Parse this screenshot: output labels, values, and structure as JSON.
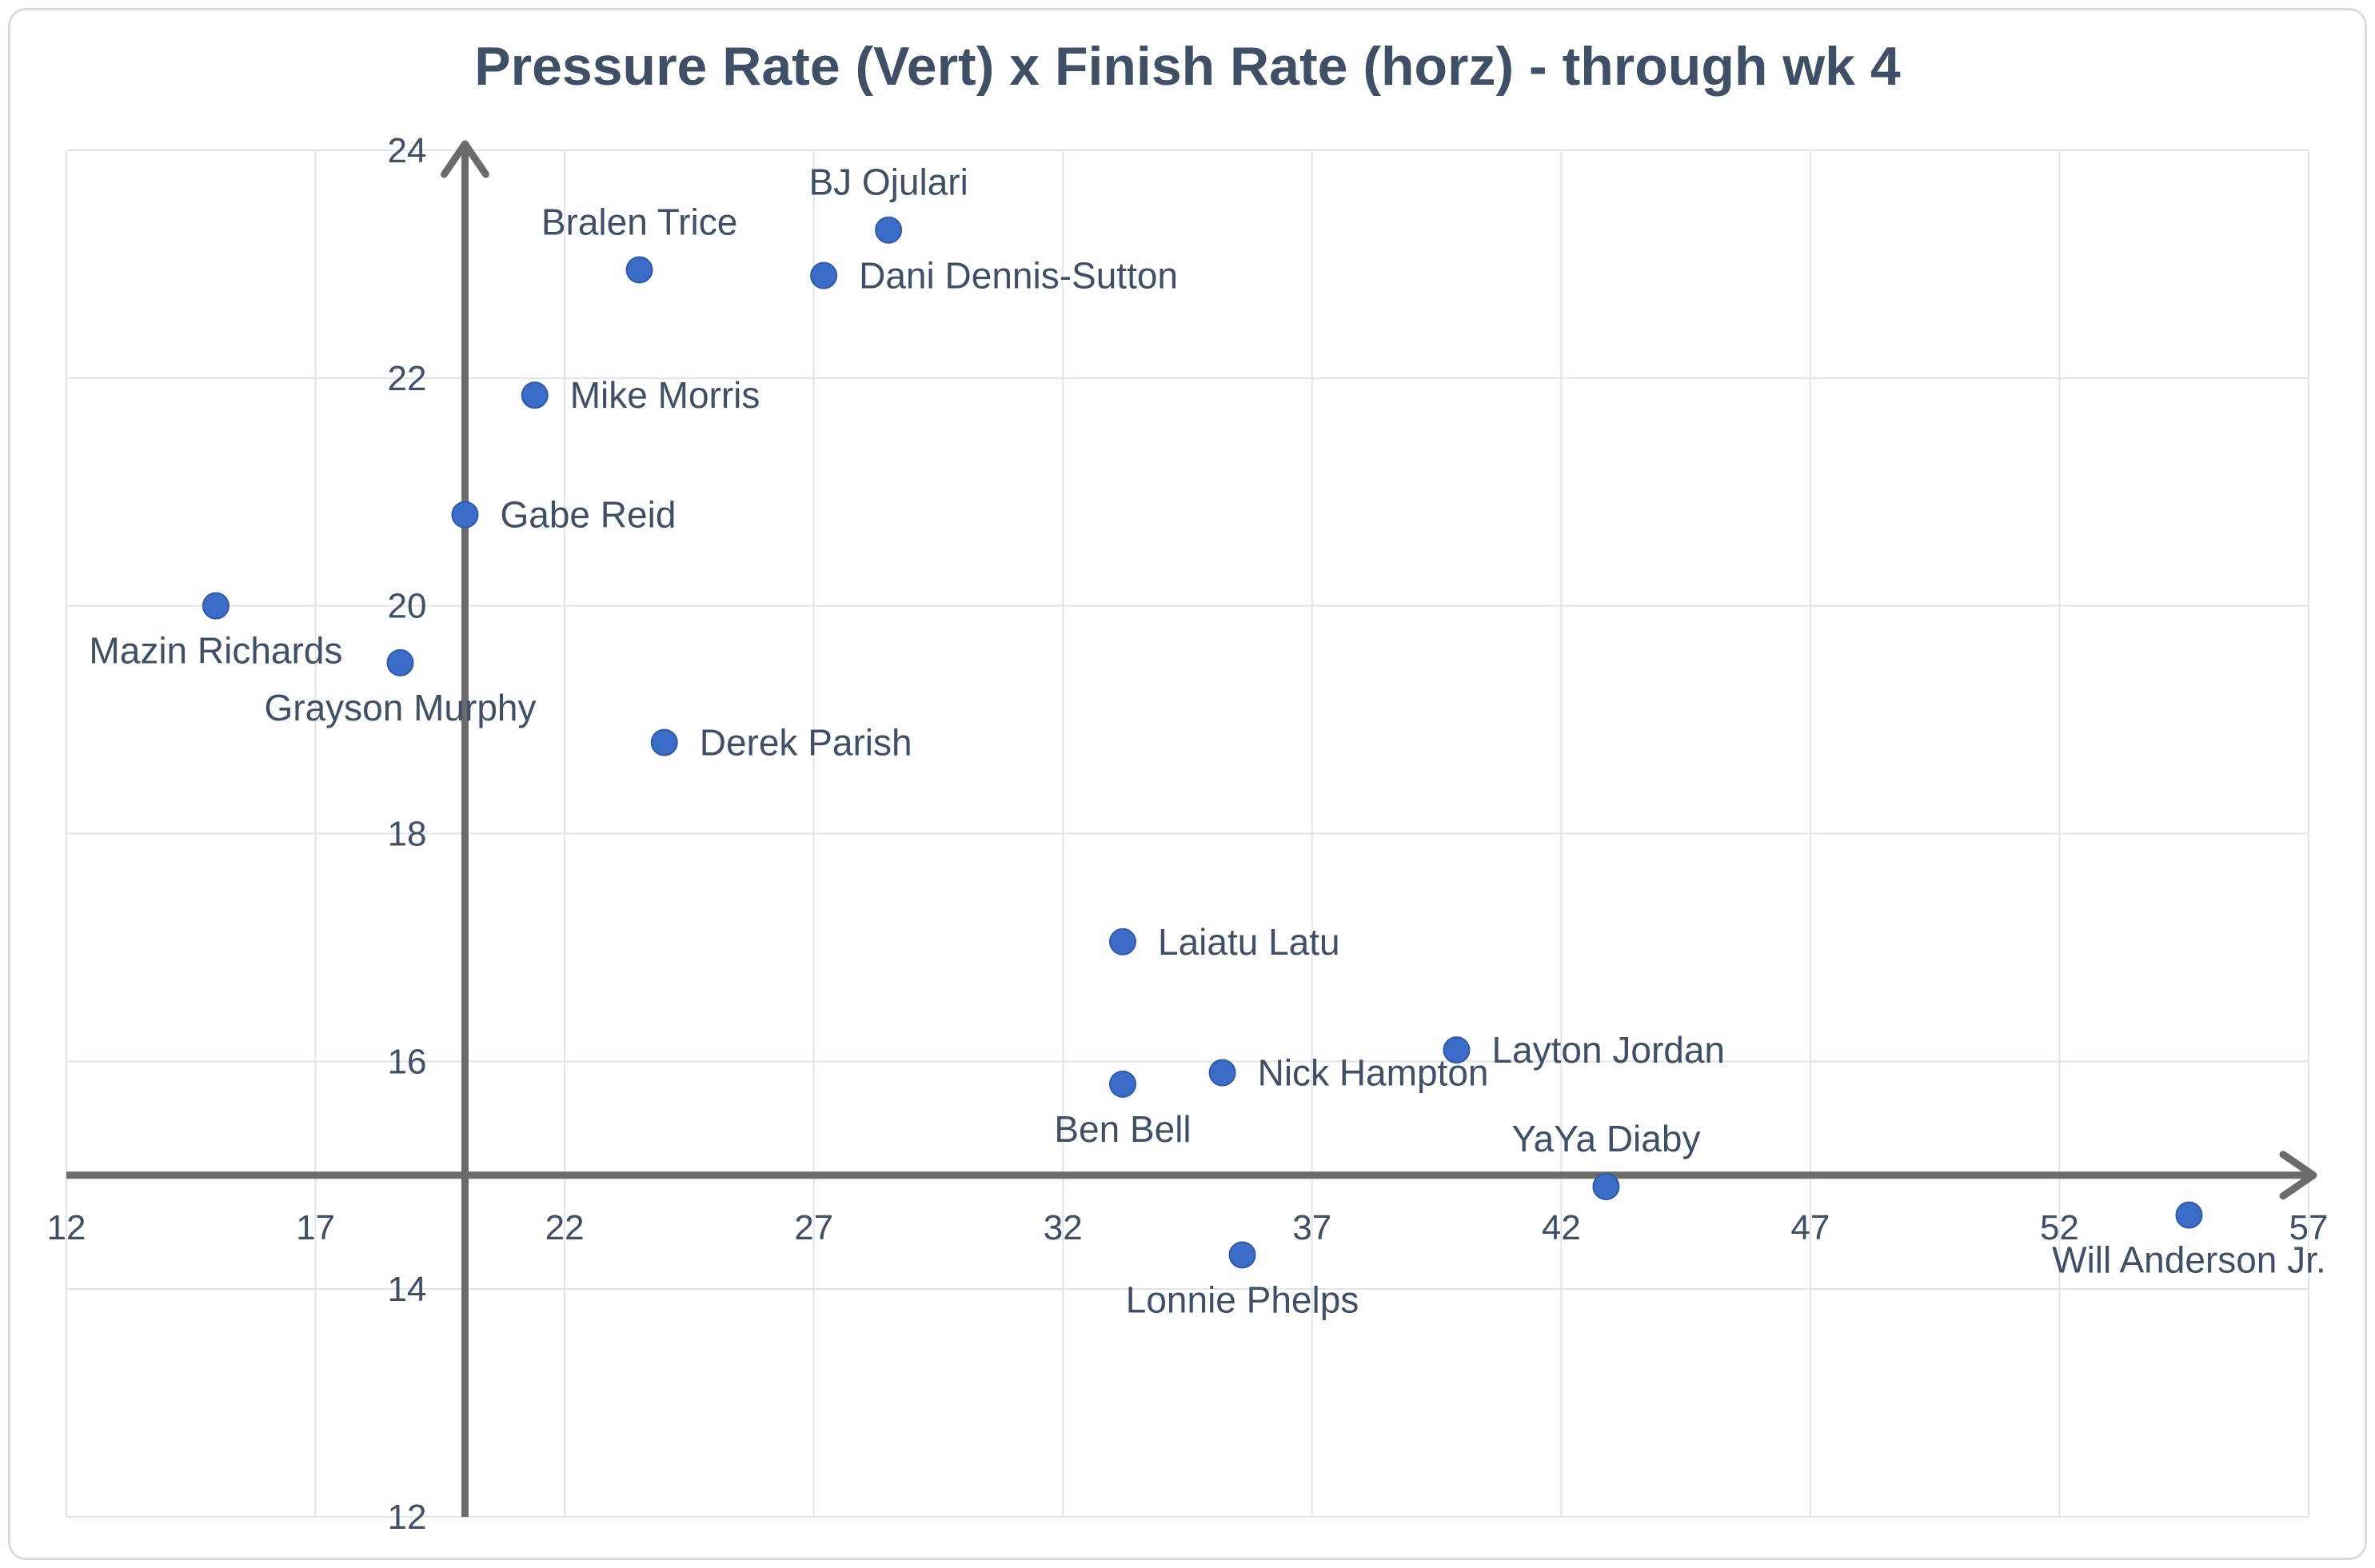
{
  "chart_data": {
    "type": "scatter",
    "title": "Pressure Rate (Vert) x Finish Rate (horz) - through wk 4",
    "xlabel": "",
    "ylabel": "",
    "xlim": [
      12,
      57
    ],
    "ylim": [
      12,
      24
    ],
    "x_ticks": [
      12,
      17,
      22,
      27,
      32,
      37,
      42,
      47,
      52,
      57
    ],
    "y_ticks": [
      12,
      14,
      16,
      18,
      20,
      22,
      24
    ],
    "axis_crossing": {
      "x_at_y": 15,
      "y_at_x": 20
    },
    "grid": true,
    "legend": "none",
    "marker_color": "#3b6cc7",
    "points": [
      {
        "label": "BJ Ojulari",
        "x": 28.5,
        "y": 23.3,
        "label_pos": "above"
      },
      {
        "label": "Bralen Trice",
        "x": 23.5,
        "y": 22.95,
        "label_pos": "above"
      },
      {
        "label": "Dani Dennis-Sutton",
        "x": 27.2,
        "y": 22.9,
        "label_pos": "right"
      },
      {
        "label": "Mike Morris",
        "x": 21.4,
        "y": 21.85,
        "label_pos": "right"
      },
      {
        "label": "Gabe Reid",
        "x": 20.0,
        "y": 20.8,
        "label_pos": "right"
      },
      {
        "label": "Mazin Richards",
        "x": 15.0,
        "y": 20.0,
        "label_pos": "below"
      },
      {
        "label": "Grayson Murphy",
        "x": 18.7,
        "y": 19.5,
        "label_pos": "below"
      },
      {
        "label": "Derek Parish",
        "x": 24.0,
        "y": 18.8,
        "label_pos": "right"
      },
      {
        "label": "Laiatu Latu",
        "x": 33.2,
        "y": 17.05,
        "label_pos": "right"
      },
      {
        "label": "Layton Jordan",
        "x": 39.9,
        "y": 16.1,
        "label_pos": "right"
      },
      {
        "label": "Nick Hampton",
        "x": 35.2,
        "y": 15.9,
        "label_pos": "right"
      },
      {
        "label": "Ben Bell",
        "x": 33.2,
        "y": 15.8,
        "label_pos": "below"
      },
      {
        "label": "YaYa Diaby",
        "x": 42.9,
        "y": 14.9,
        "label_pos": "above"
      },
      {
        "label": "Will Anderson Jr.",
        "x": 54.6,
        "y": 14.65,
        "label_pos": "below"
      },
      {
        "label": "Lonnie Phelps",
        "x": 35.6,
        "y": 14.3,
        "label_pos": "below"
      }
    ]
  }
}
